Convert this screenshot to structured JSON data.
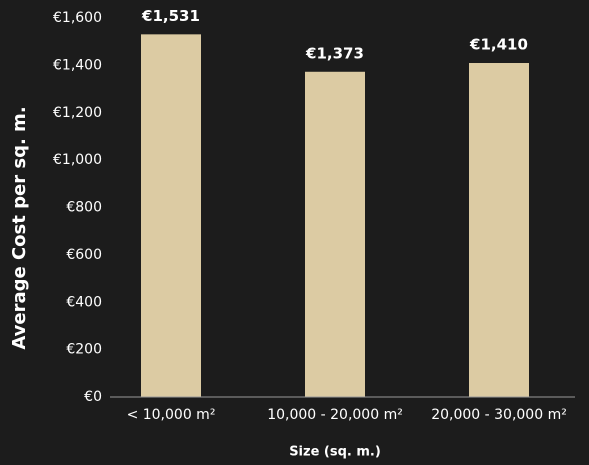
{
  "chart_data": {
    "type": "bar",
    "x_label": "Size (sq. m.)",
    "y_label": "Average Cost per sq. m.",
    "categories": [
      "< 10,000 m²",
      "10,000 - 20,000 m²",
      "20,000 - 30,000 m²"
    ],
    "values": [
      1531,
      1373,
      1410
    ],
    "value_labels": [
      "€1,531",
      "€1,373",
      "€1,410"
    ],
    "color": "#dccba3",
    "ylim": [
      0,
      1600
    ],
    "yticks": [
      {
        "value": 0,
        "label": "€0"
      },
      {
        "value": 200,
        "label": "€200"
      },
      {
        "value": 400,
        "label": "€400"
      },
      {
        "value": 600,
        "label": "€600"
      },
      {
        "value": 800,
        "label": "€800"
      },
      {
        "value": 1000,
        "label": "€1,000"
      },
      {
        "value": 1200,
        "label": "€1,200"
      },
      {
        "value": 1400,
        "label": "€1,400"
      },
      {
        "value": 1600,
        "label": "€1,600"
      }
    ],
    "grid": false
  }
}
